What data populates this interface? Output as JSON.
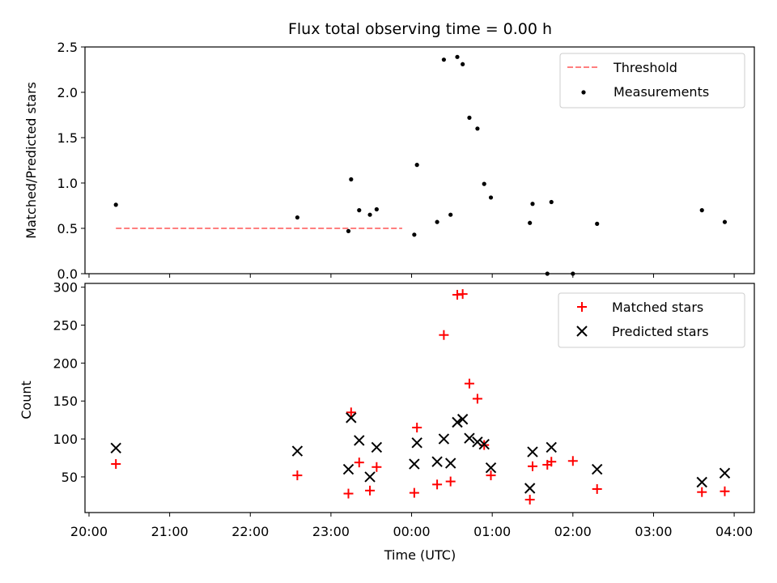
{
  "chart_data": {
    "title": "Flux total observing time = 0.00 h",
    "xlabel": "Time (UTC)",
    "x_ticks": [
      "20:00",
      "21:00",
      "22:00",
      "23:00",
      "00:00",
      "01:00",
      "02:00",
      "03:00",
      "04:00"
    ],
    "xlim_hours": [
      19.95,
      28.25
    ],
    "top": {
      "type": "scatter",
      "ylabel": "Matched/Predicted stars",
      "ylim": [
        0,
        2.5
      ],
      "y_ticks": [
        "0.0",
        "0.5",
        "1.0",
        "1.5",
        "2.0",
        "2.5"
      ],
      "legend_position": "top-right",
      "threshold": {
        "name": "Threshold",
        "value": 0.5,
        "x_range": [
          "20:20",
          "23:50"
        ],
        "color": "#ff7f7f"
      },
      "series": [
        {
          "name": "Measurements",
          "color": "#000000",
          "points": [
            {
              "x": "20:20",
              "y": 0.76
            },
            {
              "x": "22:35",
              "y": 0.62
            },
            {
              "x": "23:13",
              "y": 0.47
            },
            {
              "x": "23:15",
              "y": 1.04
            },
            {
              "x": "23:21",
              "y": 0.7
            },
            {
              "x": "23:29",
              "y": 0.65
            },
            {
              "x": "23:34",
              "y": 0.71
            },
            {
              "x": "00:02",
              "y": 0.43
            },
            {
              "x": "00:04",
              "y": 1.2
            },
            {
              "x": "00:19",
              "y": 0.57
            },
            {
              "x": "00:24",
              "y": 2.36
            },
            {
              "x": "00:29",
              "y": 0.65
            },
            {
              "x": "00:34",
              "y": 2.39
            },
            {
              "x": "00:38",
              "y": 2.31
            },
            {
              "x": "00:43",
              "y": 1.72
            },
            {
              "x": "00:49",
              "y": 1.6
            },
            {
              "x": "00:54",
              "y": 0.99
            },
            {
              "x": "00:59",
              "y": 0.84
            },
            {
              "x": "01:28",
              "y": 0.56
            },
            {
              "x": "01:30",
              "y": 0.77
            },
            {
              "x": "01:41",
              "y": 0.0
            },
            {
              "x": "01:44",
              "y": 0.79
            },
            {
              "x": "02:00",
              "y": 0.0
            },
            {
              "x": "02:18",
              "y": 0.55
            },
            {
              "x": "03:36",
              "y": 0.7
            },
            {
              "x": "03:53",
              "y": 0.57
            }
          ]
        }
      ]
    },
    "bottom": {
      "type": "scatter",
      "ylabel": "Count",
      "ylim": [
        3,
        305
      ],
      "y_ticks": [
        50,
        100,
        150,
        200,
        250,
        300
      ],
      "legend_position": "top-right",
      "series": [
        {
          "name": "Matched stars",
          "marker": "plus",
          "color": "#ff0000",
          "points": [
            {
              "x": "20:20",
              "y": 67
            },
            {
              "x": "22:35",
              "y": 52
            },
            {
              "x": "23:13",
              "y": 28
            },
            {
              "x": "23:15",
              "y": 135
            },
            {
              "x": "23:21",
              "y": 69
            },
            {
              "x": "23:29",
              "y": 32
            },
            {
              "x": "23:34",
              "y": 63
            },
            {
              "x": "00:02",
              "y": 29
            },
            {
              "x": "00:04",
              "y": 115
            },
            {
              "x": "00:19",
              "y": 40
            },
            {
              "x": "00:24",
              "y": 237
            },
            {
              "x": "00:29",
              "y": 44
            },
            {
              "x": "00:34",
              "y": 290
            },
            {
              "x": "00:38",
              "y": 291
            },
            {
              "x": "00:43",
              "y": 173
            },
            {
              "x": "00:49",
              "y": 153
            },
            {
              "x": "00:54",
              "y": 92
            },
            {
              "x": "00:59",
              "y": 52
            },
            {
              "x": "01:28",
              "y": 20
            },
            {
              "x": "01:30",
              "y": 64
            },
            {
              "x": "01:41",
              "y": 66
            },
            {
              "x": "01:44",
              "y": 70
            },
            {
              "x": "02:00",
              "y": 71
            },
            {
              "x": "02:18",
              "y": 34
            },
            {
              "x": "03:36",
              "y": 30
            },
            {
              "x": "03:53",
              "y": 31
            }
          ]
        },
        {
          "name": "Predicted stars",
          "marker": "x",
          "color": "#000000",
          "points": [
            {
              "x": "20:20",
              "y": 88
            },
            {
              "x": "22:35",
              "y": 84
            },
            {
              "x": "23:13",
              "y": 60
            },
            {
              "x": "23:15",
              "y": 128
            },
            {
              "x": "23:21",
              "y": 98
            },
            {
              "x": "23:29",
              "y": 50
            },
            {
              "x": "23:34",
              "y": 89
            },
            {
              "x": "00:02",
              "y": 67
            },
            {
              "x": "00:04",
              "y": 95
            },
            {
              "x": "00:19",
              "y": 70
            },
            {
              "x": "00:24",
              "y": 100
            },
            {
              "x": "00:29",
              "y": 68
            },
            {
              "x": "00:34",
              "y": 122
            },
            {
              "x": "00:38",
              "y": 126
            },
            {
              "x": "00:43",
              "y": 101
            },
            {
              "x": "00:49",
              "y": 96
            },
            {
              "x": "00:54",
              "y": 93
            },
            {
              "x": "00:59",
              "y": 62
            },
            {
              "x": "01:28",
              "y": 35
            },
            {
              "x": "01:30",
              "y": 83
            },
            {
              "x": "01:44",
              "y": 89
            },
            {
              "x": "02:18",
              "y": 60
            },
            {
              "x": "03:36",
              "y": 43
            },
            {
              "x": "03:53",
              "y": 55
            }
          ]
        }
      ]
    }
  }
}
